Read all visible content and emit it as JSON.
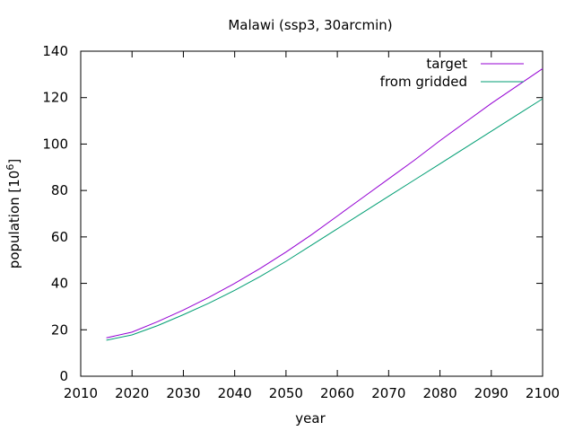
{
  "chart_data": {
    "type": "line",
    "title": "Malawi (ssp3, 30arcmin)",
    "xlabel": "year",
    "ylabel": "population [10",
    "ylabel_superscript": "6",
    "ylabel_suffix": "]",
    "xlim": [
      2010,
      2100
    ],
    "ylim": [
      0,
      140
    ],
    "xticks": [
      2010,
      2020,
      2030,
      2040,
      2050,
      2060,
      2070,
      2080,
      2090,
      2100
    ],
    "yticks": [
      0,
      20,
      40,
      60,
      80,
      100,
      120,
      140
    ],
    "grid": false,
    "legend_position": "top-right",
    "x": [
      2015,
      2020,
      2025,
      2030,
      2035,
      2040,
      2045,
      2050,
      2055,
      2060,
      2065,
      2070,
      2075,
      2080,
      2085,
      2090,
      2095,
      2100
    ],
    "series": [
      {
        "name": "target",
        "color": "#9400d3",
        "values": [
          16.5,
          19.0,
          23.5,
          28.5,
          34.0,
          40.0,
          46.5,
          53.5,
          61.0,
          69.0,
          77.0,
          85.0,
          93.0,
          101.5,
          109.5,
          117.5,
          125.0,
          132.5
        ]
      },
      {
        "name": "from gridded",
        "color": "#009e73",
        "values": [
          15.5,
          17.8,
          21.8,
          26.5,
          31.5,
          37.0,
          43.0,
          49.5,
          56.5,
          63.5,
          70.5,
          77.5,
          84.5,
          91.5,
          98.5,
          105.5,
          112.5,
          119.5
        ]
      }
    ]
  }
}
